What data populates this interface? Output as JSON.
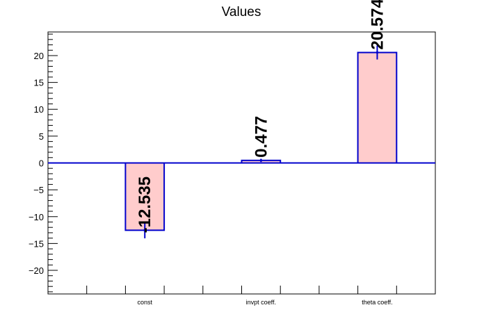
{
  "chart_data": {
    "type": "bar",
    "title": "Values",
    "xlabel": "",
    "ylabel": "",
    "categories": [
      "const",
      "invpt coeff.",
      "theta coeff."
    ],
    "values": [
      -12.535,
      0.477,
      20.574
    ],
    "errors": [
      1.5,
      0.3,
      1.3
    ],
    "value_labels": [
      "-12.535",
      "0.477",
      "20.574"
    ],
    "ylim": [
      -24.4,
      24.4
    ],
    "yticks": [
      -20,
      -15,
      -10,
      -5,
      0,
      5,
      10,
      15,
      20
    ],
    "ytick_labels": [
      "−20",
      "−15",
      "−10",
      "−5",
      "0",
      "5",
      "10",
      "15",
      "20"
    ],
    "grid": false,
    "colors": {
      "bar_fill": "#ffcccc",
      "bar_edge": "#0000cc",
      "axis": "#000000"
    }
  }
}
